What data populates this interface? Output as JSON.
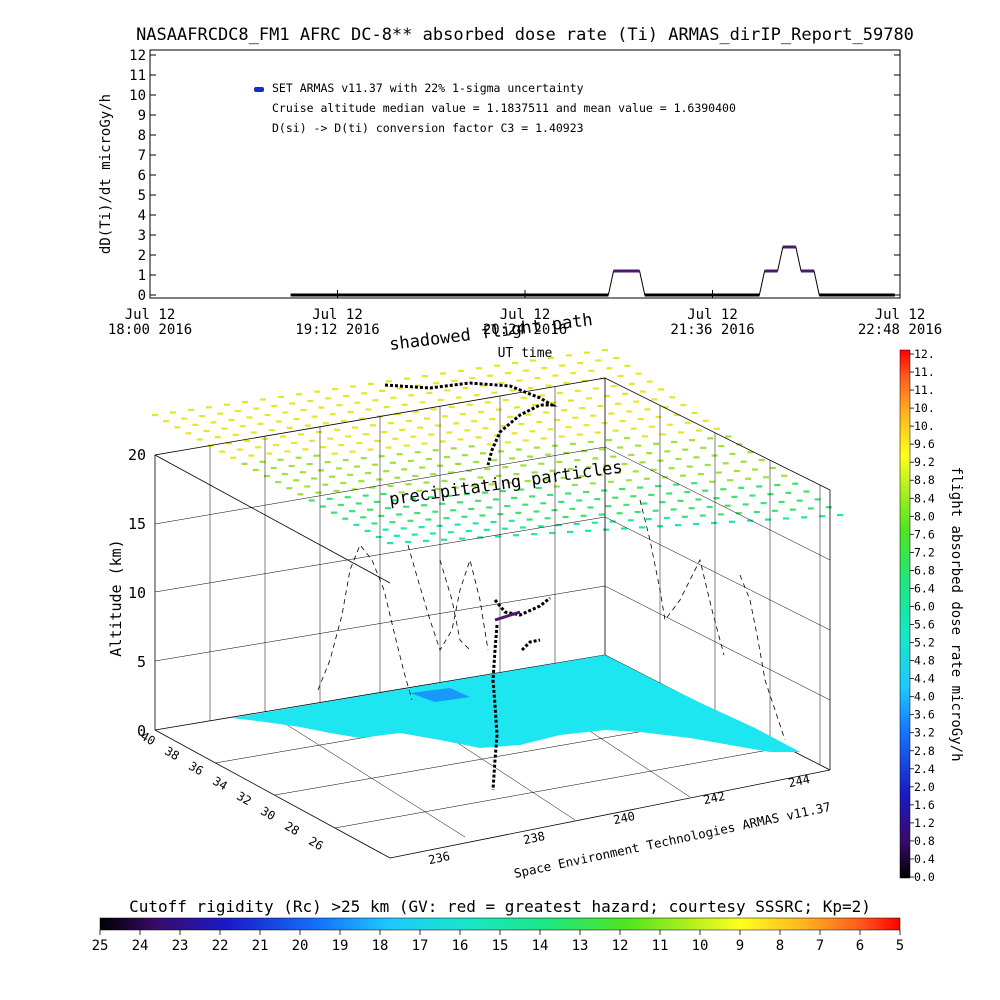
{
  "title": "NASAAFRCDC8_FM1 AFRC DC-8** absorbed dose rate (Ti) ARMAS_dirIP_Report_59780",
  "chart_data": [
    {
      "type": "line",
      "ylabel": "dD(Ti)/dt microGy/h",
      "xlabel": "UT time",
      "ylim": [
        0,
        12
      ],
      "yticks": [
        "0",
        "1",
        "2",
        "3",
        "4",
        "5",
        "6",
        "7",
        "8",
        "9",
        "10",
        "11",
        "12"
      ],
      "xlim": [
        0,
        288
      ],
      "xticks": [
        {
          "line1": "Jul 12",
          "line2": "18:00 2016",
          "x": 0
        },
        {
          "line1": "Jul 12",
          "line2": "19:12 2016",
          "x": 72
        },
        {
          "line1": "Jul 12",
          "line2": "20:24 2016",
          "x": 144
        },
        {
          "line1": "Jul 12",
          "line2": "21:36 2016",
          "x": 216
        },
        {
          "line1": "Jul 12",
          "line2": "22:48 2016",
          "x": 288
        }
      ],
      "annotations": [
        "SET ARMAS v11.37 with 22% 1-sigma uncertainty",
        "Cruise altitude median value = 1.1837511 and mean value = 1.6390400",
        "D(si) -> D(ti) conversion factor C3 = 1.40923"
      ],
      "legend_color": "#1030c8",
      "series": [
        {
          "color": "#4b1a6e",
          "x": [
            54,
            176,
            178,
            188,
            190,
            234,
            236,
            241,
            243,
            248,
            250,
            255,
            257,
            286
          ],
          "y": [
            0,
            0,
            1.2,
            1.2,
            0,
            0,
            1.2,
            1.2,
            2.4,
            2.4,
            1.2,
            1.2,
            0,
            0
          ]
        }
      ]
    },
    {
      "type": "scatter3d",
      "zlabel": "Altitude (km)",
      "zlim": [
        0,
        20
      ],
      "zticks": [
        "0",
        "5",
        "10",
        "15",
        "20"
      ],
      "latticks": [
        "40",
        "38",
        "36",
        "34",
        "32",
        "30",
        "28",
        "26"
      ],
      "lonticks": [
        "236",
        "238",
        "240",
        "242",
        "244"
      ],
      "labels": [
        "shadowed flight path",
        "precipitating particles"
      ],
      "credit": "Space Environment Technologies ARMAS v11.37"
    },
    {
      "type": "colorbar",
      "label": "flight absorbed dose rate microGy/h",
      "ticks": [
        "0.0",
        "0.4",
        "0.8",
        "1.2",
        "1.6",
        "2.0",
        "2.4",
        "2.8",
        "3.2",
        "3.6",
        "4.0",
        "4.4",
        "4.8",
        "5.2",
        "5.6",
        "6.0",
        "6.4",
        "6.8",
        "7.2",
        "7.6",
        "8.0",
        "8.4",
        "8.8",
        "9.2",
        "9.6",
        "10.",
        "10.",
        "11.",
        "11.",
        "12."
      ]
    },
    {
      "type": "colorbar",
      "label": "Cutoff rigidity (Rc) >25 km (GV: red = greatest hazard; courtesy SSSRC; Kp=2)",
      "ticks": [
        "25",
        "24",
        "23",
        "22",
        "21",
        "20",
        "19",
        "18",
        "17",
        "16",
        "15",
        "14",
        "13",
        "12",
        "11",
        "10",
        "9",
        "8",
        "7",
        "6",
        "5"
      ]
    }
  ]
}
